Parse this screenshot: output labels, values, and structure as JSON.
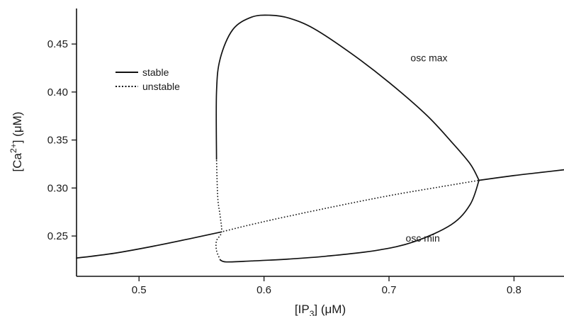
{
  "chart_data": {
    "type": "line",
    "title": "",
    "xlabel": {
      "main": "[IP",
      "sub": "3",
      "tail": "] (μM)"
    },
    "ylabel": {
      "main": "[Ca",
      "sup": "2+",
      "tail": "] (μM)"
    },
    "xlim": [
      0.45,
      0.84
    ],
    "ylim": [
      0.208,
      0.487
    ],
    "x_ticks": [
      {
        "value": 0.5,
        "label": "0.5"
      },
      {
        "value": 0.6,
        "label": "0.6"
      },
      {
        "value": 0.7,
        "label": "0.7"
      },
      {
        "value": 0.8,
        "label": "0.8"
      }
    ],
    "y_ticks": [
      {
        "value": 0.25,
        "label": "0.25"
      },
      {
        "value": 0.3,
        "label": "0.30"
      },
      {
        "value": 0.35,
        "label": "0.35"
      },
      {
        "value": 0.4,
        "label": "0.40"
      },
      {
        "value": 0.45,
        "label": "0.45"
      }
    ],
    "grid": false,
    "legend": {
      "placement": "top-left",
      "entries": [
        {
          "label": "stable",
          "style": "solid"
        },
        {
          "label": "unstable",
          "style": "dotted"
        }
      ]
    },
    "annotations": [
      {
        "text": "osc max",
        "x": 0.732,
        "y": 0.432
      },
      {
        "text": "osc min",
        "x": 0.727,
        "y": 0.244
      }
    ],
    "series": [
      {
        "style": "solid",
        "x": [
          0.45,
          0.48,
          0.51,
          0.54,
          0.565
        ],
        "y": [
          0.227,
          0.232,
          0.239,
          0.247,
          0.254
        ]
      },
      {
        "style": "dotted",
        "x": [
          0.565,
          0.6,
          0.65,
          0.7,
          0.74,
          0.772
        ],
        "y": [
          0.254,
          0.265,
          0.279,
          0.292,
          0.301,
          0.308
        ]
      },
      {
        "style": "solid",
        "x": [
          0.772,
          0.8,
          0.82,
          0.84
        ],
        "y": [
          0.308,
          0.313,
          0.316,
          0.319
        ]
      },
      {
        "style": "solid",
        "x": [
          0.562,
          0.562,
          0.565,
          0.575,
          0.59,
          0.605,
          0.62,
          0.64,
          0.67,
          0.7,
          0.73,
          0.75,
          0.765,
          0.772
        ],
        "y": [
          0.33,
          0.4,
          0.435,
          0.465,
          0.478,
          0.48,
          0.477,
          0.466,
          0.44,
          0.41,
          0.376,
          0.348,
          0.325,
          0.308
        ]
      },
      {
        "style": "solid",
        "x": [
          0.772,
          0.765,
          0.75,
          0.72,
          0.69,
          0.65,
          0.62,
          0.59,
          0.57,
          0.565
        ],
        "y": [
          0.308,
          0.283,
          0.262,
          0.244,
          0.235,
          0.229,
          0.226,
          0.224,
          0.223,
          0.225
        ]
      },
      {
        "style": "dotted",
        "x": [
          0.565,
          0.562,
          0.562,
          0.566,
          0.565,
          0.563,
          0.562
        ],
        "y": [
          0.225,
          0.235,
          0.245,
          0.254,
          0.27,
          0.29,
          0.33
        ]
      }
    ]
  }
}
